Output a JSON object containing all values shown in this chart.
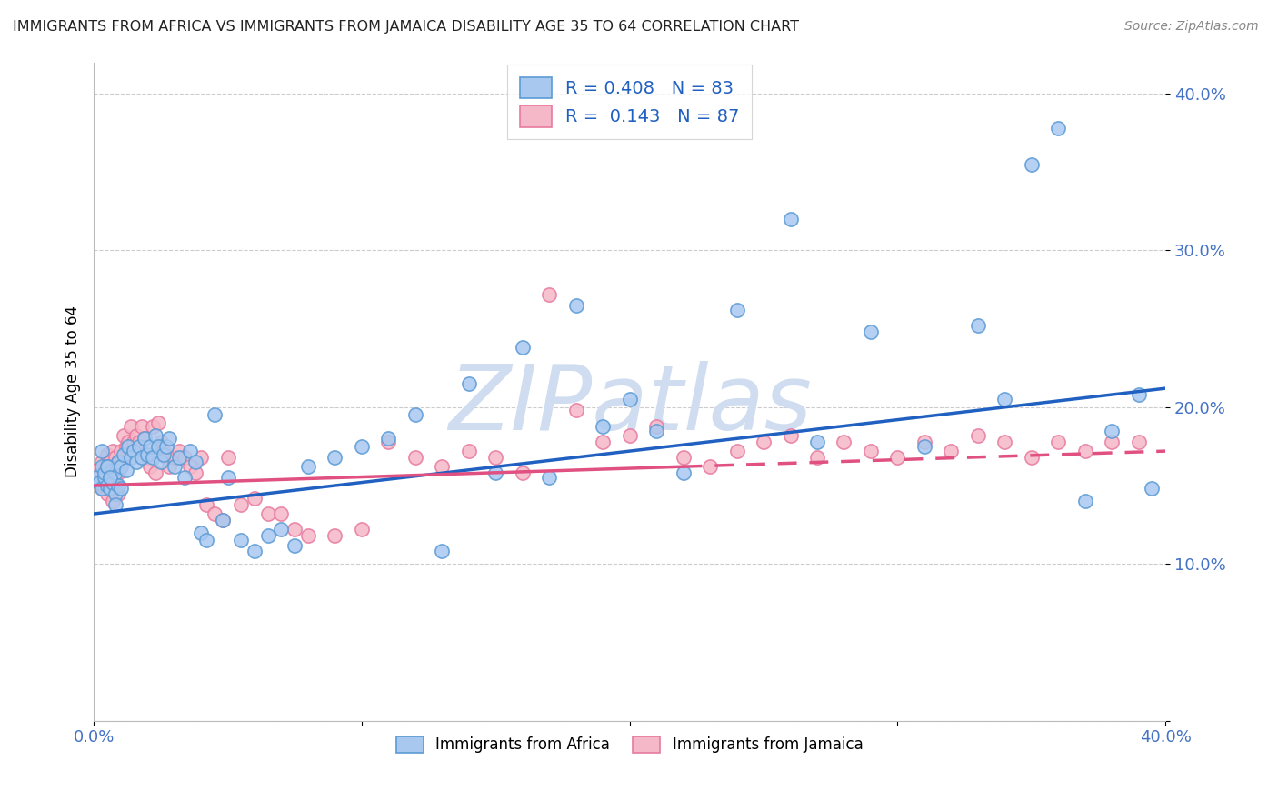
{
  "title": "IMMIGRANTS FROM AFRICA VS IMMIGRANTS FROM JAMAICA DISABILITY AGE 35 TO 64 CORRELATION CHART",
  "source": "Source: ZipAtlas.com",
  "ylabel": "Disability Age 35 to 64",
  "xlim": [
    0.0,
    0.4
  ],
  "ylim": [
    0.0,
    0.42
  ],
  "africa_color": "#a8c8f0",
  "africa_edge": "#5b9bd5",
  "jamaica_color": "#f5b8c8",
  "jamaica_edge": "#e87a9f",
  "trendline_africa_color": "#2060c0",
  "trendline_jamaica_color": "#e05080",
  "legend_africa_label": "Immigrants from Africa",
  "legend_jamaica_label": "Immigrants from Jamaica",
  "R_africa": 0.408,
  "N_africa": 83,
  "R_jamaica": 0.143,
  "N_jamaica": 87,
  "africa_x": [
    0.001,
    0.002,
    0.003,
    0.003,
    0.004,
    0.004,
    0.005,
    0.005,
    0.006,
    0.006,
    0.007,
    0.007,
    0.008,
    0.008,
    0.009,
    0.009,
    0.01,
    0.01,
    0.011,
    0.012,
    0.013,
    0.014,
    0.015,
    0.016,
    0.017,
    0.018,
    0.019,
    0.02,
    0.021,
    0.022,
    0.023,
    0.024,
    0.025,
    0.026,
    0.027,
    0.028,
    0.03,
    0.032,
    0.034,
    0.036,
    0.038,
    0.04,
    0.042,
    0.045,
    0.048,
    0.05,
    0.055,
    0.06,
    0.065,
    0.07,
    0.075,
    0.08,
    0.09,
    0.1,
    0.11,
    0.12,
    0.13,
    0.14,
    0.15,
    0.16,
    0.17,
    0.18,
    0.19,
    0.2,
    0.21,
    0.22,
    0.24,
    0.26,
    0.27,
    0.29,
    0.31,
    0.33,
    0.34,
    0.35,
    0.36,
    0.37,
    0.38,
    0.39,
    0.395,
    0.005,
    0.003,
    0.006,
    0.008
  ],
  "africa_y": [
    0.155,
    0.152,
    0.148,
    0.162,
    0.155,
    0.158,
    0.15,
    0.162,
    0.148,
    0.155,
    0.152,
    0.16,
    0.145,
    0.158,
    0.15,
    0.165,
    0.148,
    0.162,
    0.17,
    0.16,
    0.175,
    0.168,
    0.172,
    0.165,
    0.175,
    0.168,
    0.18,
    0.17,
    0.175,
    0.168,
    0.182,
    0.175,
    0.165,
    0.17,
    0.175,
    0.18,
    0.162,
    0.168,
    0.155,
    0.172,
    0.165,
    0.12,
    0.115,
    0.195,
    0.128,
    0.155,
    0.115,
    0.108,
    0.118,
    0.122,
    0.112,
    0.162,
    0.168,
    0.175,
    0.18,
    0.195,
    0.108,
    0.215,
    0.158,
    0.238,
    0.155,
    0.265,
    0.188,
    0.205,
    0.185,
    0.158,
    0.262,
    0.32,
    0.178,
    0.248,
    0.175,
    0.252,
    0.205,
    0.355,
    0.378,
    0.14,
    0.185,
    0.208,
    0.148,
    0.162,
    0.172,
    0.155,
    0.138
  ],
  "jamaica_x": [
    0.001,
    0.002,
    0.003,
    0.003,
    0.004,
    0.004,
    0.005,
    0.005,
    0.006,
    0.006,
    0.007,
    0.007,
    0.008,
    0.008,
    0.009,
    0.009,
    0.01,
    0.01,
    0.011,
    0.012,
    0.013,
    0.014,
    0.015,
    0.016,
    0.017,
    0.018,
    0.019,
    0.02,
    0.021,
    0.022,
    0.023,
    0.024,
    0.025,
    0.026,
    0.027,
    0.028,
    0.03,
    0.032,
    0.034,
    0.036,
    0.038,
    0.04,
    0.042,
    0.045,
    0.048,
    0.05,
    0.055,
    0.06,
    0.065,
    0.07,
    0.075,
    0.08,
    0.09,
    0.1,
    0.11,
    0.12,
    0.13,
    0.14,
    0.15,
    0.16,
    0.17,
    0.18,
    0.19,
    0.2,
    0.21,
    0.22,
    0.23,
    0.24,
    0.25,
    0.26,
    0.27,
    0.28,
    0.29,
    0.3,
    0.31,
    0.32,
    0.33,
    0.34,
    0.35,
    0.36,
    0.37,
    0.38,
    0.39,
    0.003,
    0.005,
    0.007,
    0.009
  ],
  "jamaica_y": [
    0.16,
    0.155,
    0.165,
    0.148,
    0.162,
    0.158,
    0.17,
    0.152,
    0.165,
    0.158,
    0.172,
    0.152,
    0.168,
    0.16,
    0.165,
    0.158,
    0.172,
    0.165,
    0.182,
    0.175,
    0.178,
    0.188,
    0.178,
    0.182,
    0.178,
    0.188,
    0.18,
    0.168,
    0.162,
    0.188,
    0.158,
    0.19,
    0.178,
    0.172,
    0.168,
    0.162,
    0.168,
    0.172,
    0.168,
    0.162,
    0.158,
    0.168,
    0.138,
    0.132,
    0.128,
    0.168,
    0.138,
    0.142,
    0.132,
    0.132,
    0.122,
    0.118,
    0.118,
    0.122,
    0.178,
    0.168,
    0.162,
    0.172,
    0.168,
    0.158,
    0.272,
    0.198,
    0.178,
    0.182,
    0.188,
    0.168,
    0.162,
    0.172,
    0.178,
    0.182,
    0.168,
    0.178,
    0.172,
    0.168,
    0.178,
    0.172,
    0.182,
    0.178,
    0.168,
    0.178,
    0.172,
    0.178,
    0.178,
    0.15,
    0.145,
    0.14,
    0.145
  ],
  "trendline_africa_x0": 0.0,
  "trendline_africa_y0": 0.132,
  "trendline_africa_x1": 0.4,
  "trendline_africa_y1": 0.212,
  "trendline_jamaica_x0": 0.0,
  "trendline_jamaica_y0": 0.15,
  "trendline_jamaica_x1": 0.4,
  "trendline_jamaica_y1": 0.172,
  "trendline_jamaica_solid_end": 0.22,
  "watermark": "ZIPatlas",
  "watermark_color": "#d0ddf0",
  "watermark_fontsize": 72
}
